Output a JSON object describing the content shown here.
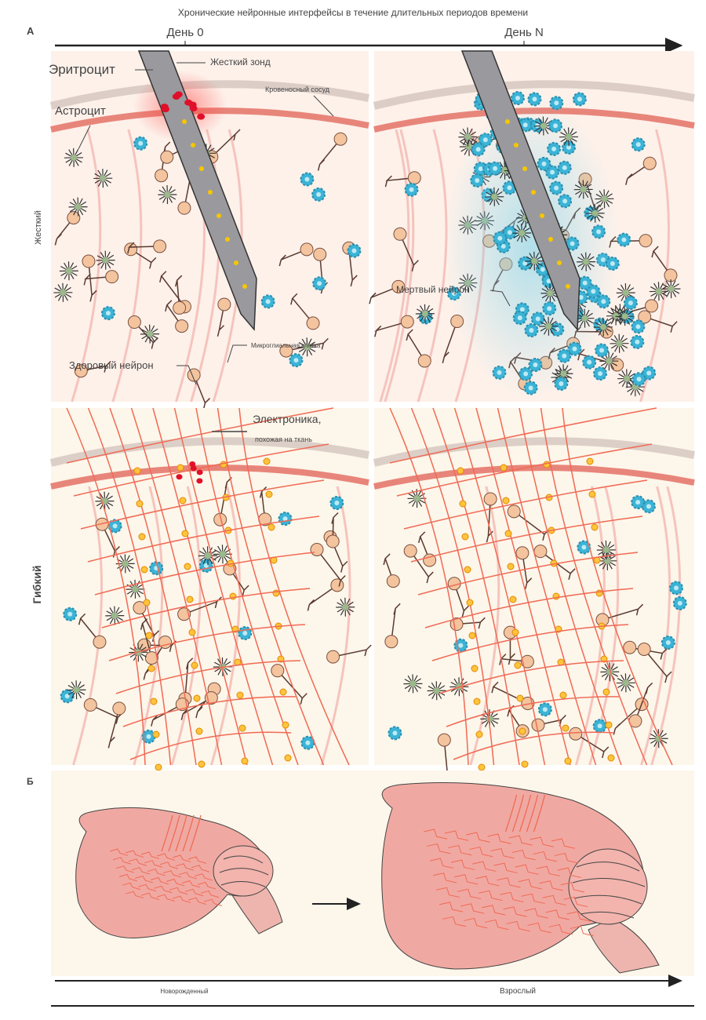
{
  "title": "Хронические нейронные интерфейсы в течение длительных периодов времени",
  "panel_a": {
    "label": "А",
    "timeline": {
      "start": "День 0",
      "end": "День N"
    },
    "rows": {
      "rigid": "Жесткий",
      "flexible": "Гибкий"
    },
    "annotations": {
      "erythrocyte": "Эритроцит",
      "rigid_probe": "Жесткий зонд",
      "blood_vessel": "Кровеносный сосуд",
      "astrocyte": "Астроцит",
      "healthy_neuron": "Здоровый нейрон",
      "microglial_cell": "Микроглиальная клетка",
      "dead_neuron": "Мертвый нейрон",
      "tissue_like_electronics_1": "Электроника,",
      "tissue_like_electronics_2": "похожая на ткань"
    }
  },
  "panel_b": {
    "label": "Б",
    "timeline": {
      "start": "Новорожденный",
      "end": "Взрослый"
    }
  },
  "colors": {
    "panel_bg": "#fdf1ea",
    "vessel": "#e8857a",
    "mesh": "#f06a55",
    "microglia": "#3bb4d6",
    "neuron": "#f3c49e",
    "astrocyte": "#9bb98a",
    "brain": "#f0a9a2"
  }
}
